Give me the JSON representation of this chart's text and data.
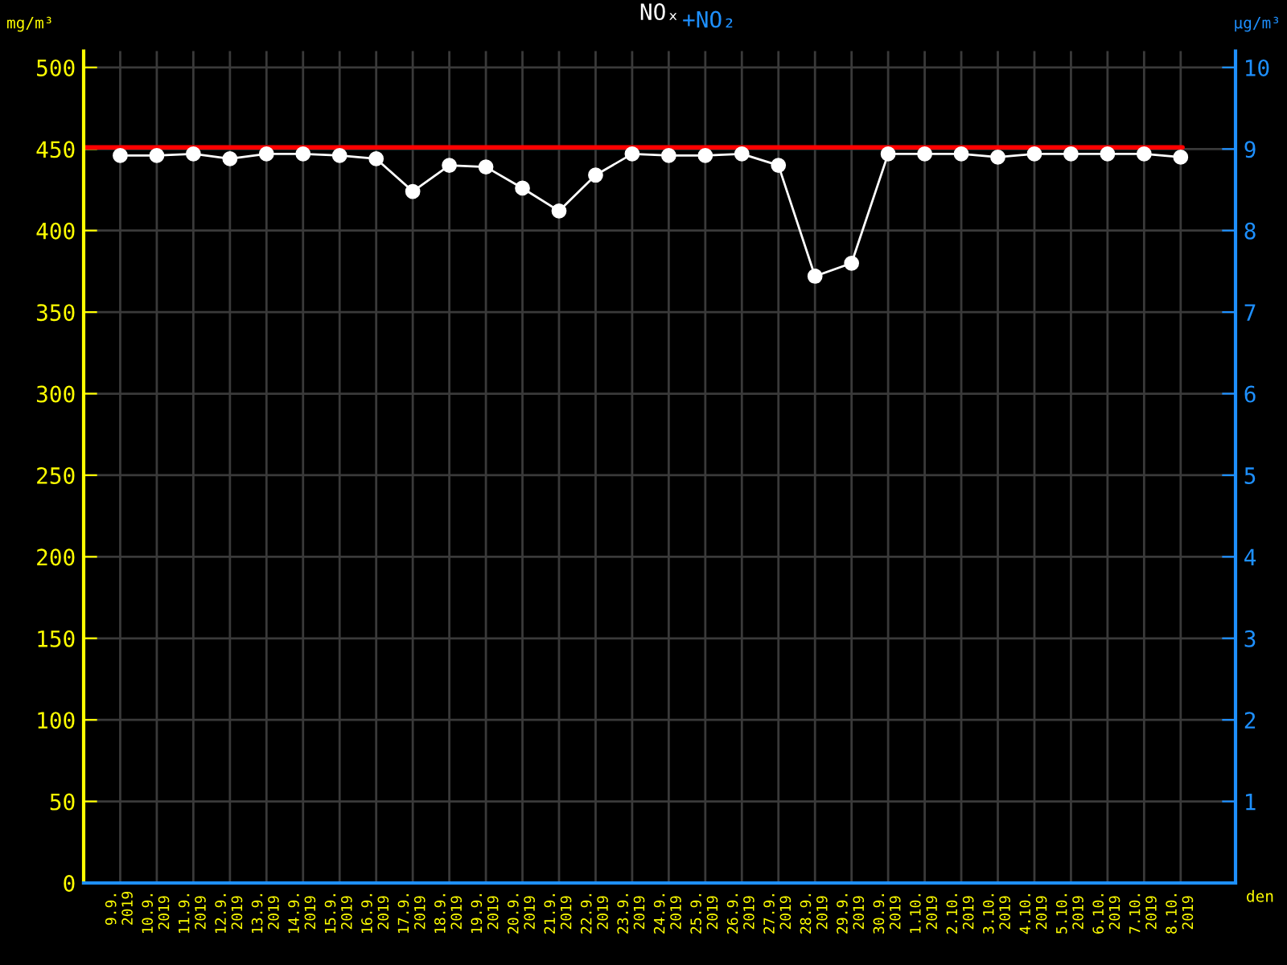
{
  "chart_data": {
    "type": "line",
    "title": "NOₓ",
    "annotations": [
      "+NO₂"
    ],
    "xlabel": "den",
    "ylabel": "mg/m³",
    "y2label": "μg/m³",
    "categories": [
      "9.9.\n2019",
      "10.9.\n2019",
      "11.9.\n2019",
      "12.9.\n2019",
      "13.9.\n2019",
      "14.9.\n2019",
      "15.9.\n2019",
      "16.9.\n2019",
      "17.9.\n2019",
      "18.9.\n2019",
      "19.9.\n2019",
      "20.9.\n2019",
      "21.9.\n2019",
      "22.9.\n2019",
      "23.9.\n2019",
      "24.9.\n2019",
      "25.9.\n2019",
      "26.9.\n2019",
      "27.9.\n2019",
      "28.9.\n2019",
      "29.9.\n2019",
      "30.9.\n2019",
      "1.10.\n2019",
      "2.10.\n2019",
      "3.10.\n2019",
      "4.10.\n2019",
      "5.10.\n2019",
      "6.10.\n2019",
      "7.10.\n2019",
      "8.10.\n2019"
    ],
    "series": [
      {
        "color": "#ffffff",
        "values": [
          446,
          446,
          447,
          444,
          447,
          447,
          446,
          444,
          424,
          440,
          439,
          426,
          412,
          434,
          447,
          446,
          446,
          447,
          440,
          372,
          380,
          447,
          447,
          447,
          445,
          447,
          447,
          447,
          447,
          445
        ]
      }
    ],
    "ylim": [
      0,
      510
    ],
    "yticks": [
      0,
      50,
      100,
      150,
      200,
      250,
      300,
      350,
      400,
      450,
      500
    ],
    "y2lim": [
      0,
      10.2
    ],
    "y2ticks": [
      {
        "value": 0,
        "label": null
      },
      1,
      2,
      3,
      4,
      5,
      6,
      7,
      8,
      9,
      10
    ],
    "ref_lines": [
      {
        "axis": "y",
        "value": 451,
        "color": "#ff0000"
      }
    ],
    "grid": true,
    "marker": "circle",
    "line_style": "solid"
  }
}
